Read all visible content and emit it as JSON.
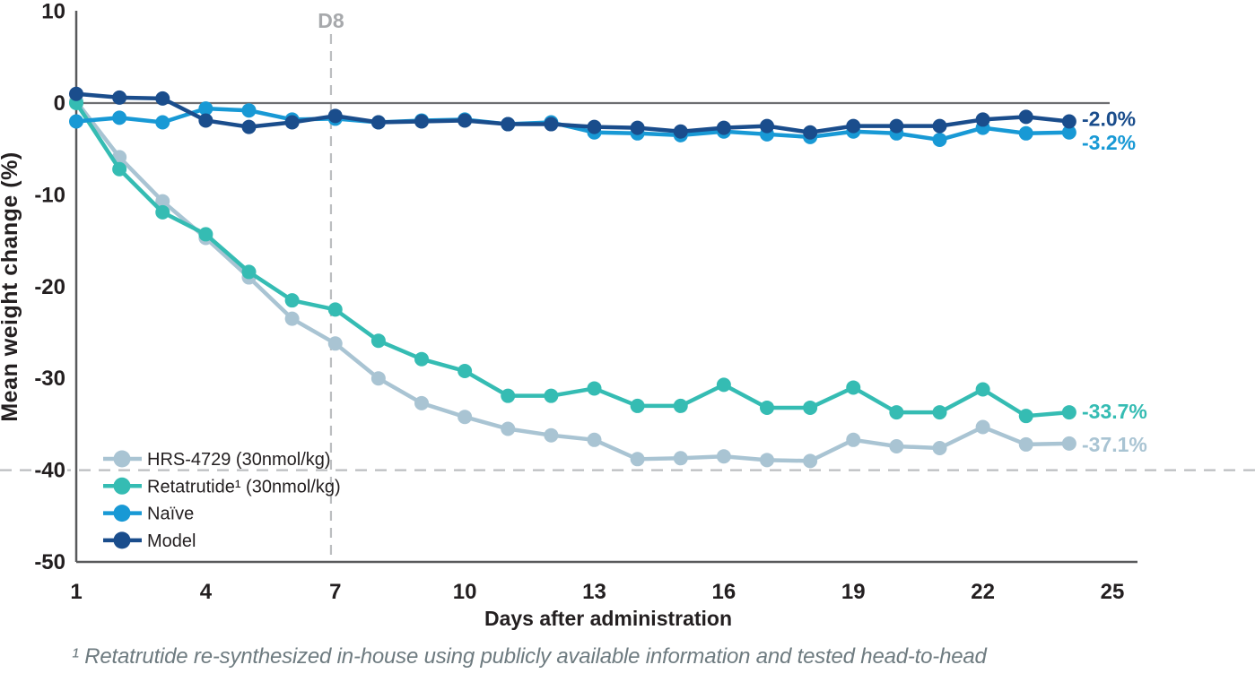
{
  "chart_data": {
    "type": "line",
    "title": "",
    "xlabel": "Days after administration",
    "ylabel": "Mean weight change (%)",
    "xlim": [
      1,
      25
    ],
    "ylim": [
      -50,
      10
    ],
    "x_ticks": [
      1,
      4,
      7,
      10,
      13,
      16,
      19,
      22,
      25
    ],
    "y_ticks": [
      10,
      0,
      -10,
      -20,
      -30,
      -40,
      -50
    ],
    "grid": "off",
    "legend_position": "inside-bottom-left",
    "days": [
      1,
      2,
      3,
      4,
      5,
      6,
      7,
      8,
      9,
      10,
      11,
      12,
      13,
      14,
      15,
      16,
      17,
      18,
      19,
      20,
      21,
      22,
      23,
      24
    ],
    "series": [
      {
        "id": "hrs-4729",
        "name": "HRS-4729 (30nmol/kg)",
        "color": "#a9c4d3",
        "end_label": "-37.1%",
        "values": [
          0.2,
          -5.9,
          -10.7,
          -14.7,
          -19.0,
          -23.5,
          -26.2,
          -30.0,
          -32.7,
          -34.2,
          -35.5,
          -36.2,
          -36.7,
          -38.8,
          -38.7,
          -38.5,
          -38.9,
          -39.0,
          -36.7,
          -37.4,
          -37.6,
          -35.3,
          -37.2,
          -37.1
        ]
      },
      {
        "id": "retatrutide",
        "name": "Retatrutide¹ (30nmol/kg)",
        "color": "#35bcb3",
        "end_label": "-33.7%",
        "values": [
          0.0,
          -7.2,
          -11.9,
          -14.3,
          -18.4,
          -21.5,
          -22.5,
          -25.9,
          -27.9,
          -29.2,
          -31.9,
          -31.9,
          -31.1,
          -33.0,
          -33.0,
          -30.7,
          -33.2,
          -33.2,
          -31.0,
          -33.7,
          -33.7,
          -31.2,
          -34.1,
          -33.7
        ]
      },
      {
        "id": "naive",
        "name": "Naïve",
        "color": "#1899d5",
        "end_label": "-3.2%",
        "values": [
          -2.0,
          -1.6,
          -2.1,
          -0.6,
          -0.8,
          -1.8,
          -1.7,
          -2.1,
          -1.9,
          -1.8,
          -2.3,
          -2.1,
          -3.2,
          -3.3,
          -3.5,
          -3.1,
          -3.4,
          -3.7,
          -3.1,
          -3.3,
          -4.0,
          -2.7,
          -3.3,
          -3.2
        ]
      },
      {
        "id": "model",
        "name": "Model",
        "color": "#1a4d8c",
        "end_label": "-2.0%",
        "values": [
          1.0,
          0.6,
          0.5,
          -1.9,
          -2.6,
          -2.1,
          -1.4,
          -2.1,
          -2.0,
          -1.9,
          -2.3,
          -2.3,
          -2.6,
          -2.7,
          -3.1,
          -2.7,
          -2.5,
          -3.2,
          -2.5,
          -2.5,
          -2.5,
          -1.8,
          -1.5,
          -2.0
        ]
      }
    ],
    "annotations": {
      "vline": {
        "label": "D8",
        "x_day": 6.9
      },
      "hline_y": -40
    },
    "footnote": "¹ Retatrutide re-synthesized in-house using publicly available information and tested head-to-head"
  },
  "colors": {
    "axis": "#58595b",
    "zero_line": "#6d6e71",
    "dashed_reference": "#bcbec0",
    "tick_label": "#231f20",
    "legend_label": "#231f20",
    "d8_label": "#a7a9ac",
    "footnote": "#6e7b80",
    "background": "#ffffff"
  }
}
